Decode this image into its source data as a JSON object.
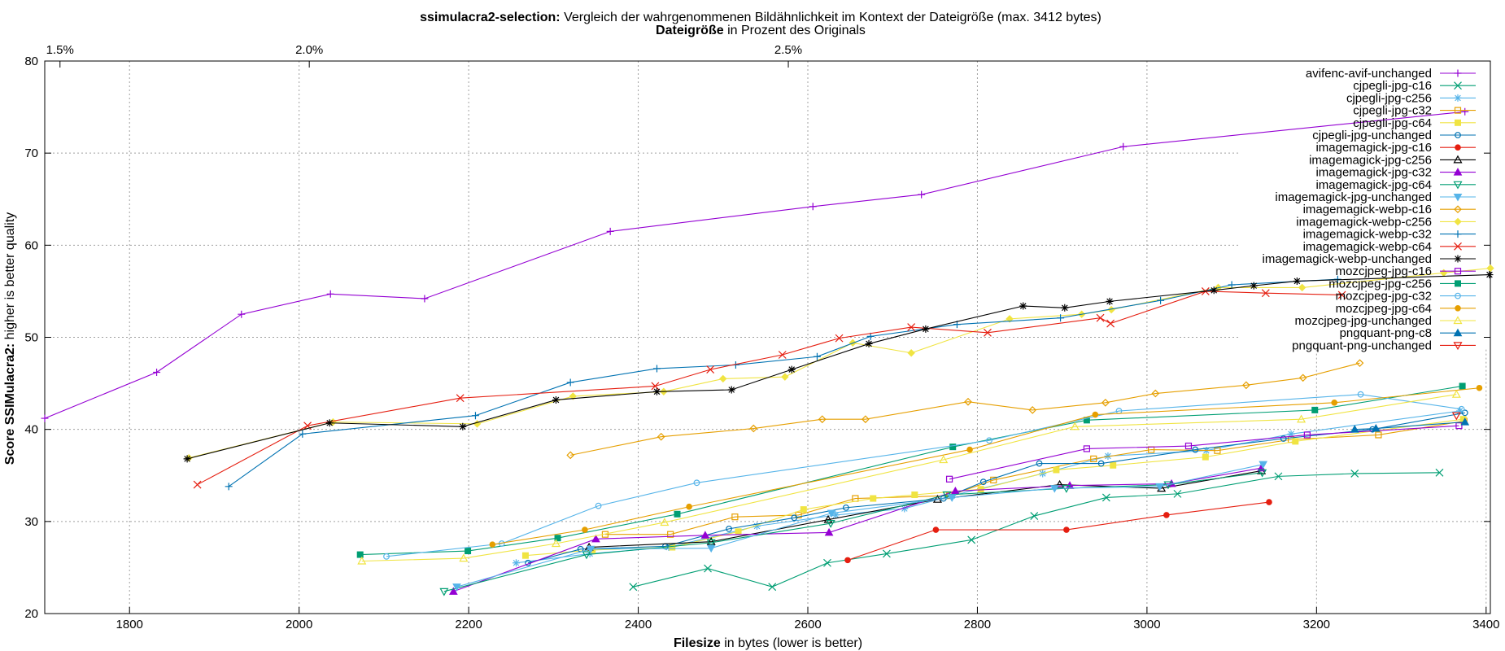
{
  "chart_data": {
    "type": "line",
    "title_bold": "ssimulacra2-selection:",
    "title_rest": " Vergleich der wahrgenommenen Bildähnlichkeit im Kontext der Dateigröße (max. 3412 bytes)",
    "subtitle_bold": "Dateigröße",
    "subtitle_rest": " in Prozent des Originals",
    "xlabel_bold": "Filesize",
    "xlabel_rest": " in bytes (lower is better)",
    "ylabel_bold": "Score SSIMulacra2:",
    "ylabel_rest": " higher is better quality",
    "xlim": [
      1700,
      3405
    ],
    "ylim": [
      20,
      80
    ],
    "xticks": [
      1800,
      2000,
      2200,
      2400,
      2600,
      2800,
      3000,
      3200,
      3400
    ],
    "yticks": [
      20,
      30,
      40,
      50,
      60,
      70,
      80
    ],
    "top_axis_ticks": [
      {
        "label": "1.5%",
        "value": 1718
      },
      {
        "label": "2.0%",
        "value": 2012
      },
      {
        "label": "2.5%",
        "value": 2577
      }
    ],
    "grid": true,
    "legend_position": "top-right",
    "series": [
      {
        "name": "avifenc-avif-unchanged",
        "color": "#9400d3",
        "marker": "plus",
        "points": [
          [
            1700,
            41.2
          ],
          [
            1832,
            46.2
          ],
          [
            1932,
            52.5
          ],
          [
            2037,
            54.7
          ],
          [
            2148,
            54.2
          ],
          [
            2367,
            61.5
          ],
          [
            2606,
            64.2
          ],
          [
            2734,
            65.5
          ],
          [
            2972,
            70.7
          ],
          [
            3375,
            74.5
          ]
        ]
      },
      {
        "name": "cjpegli-jpg-c16",
        "color": "#009e73",
        "marker": "x",
        "points": [
          [
            2394,
            22.9
          ],
          [
            2482,
            24.9
          ],
          [
            2558,
            22.9
          ],
          [
            2623,
            25.5
          ],
          [
            2693,
            26.5
          ],
          [
            2793,
            28.0
          ],
          [
            2867,
            30.6
          ],
          [
            2952,
            32.6
          ],
          [
            3036,
            33.0
          ],
          [
            3155,
            34.9
          ],
          [
            3245,
            35.2
          ],
          [
            3345,
            35.3
          ]
        ]
      },
      {
        "name": "cjpegli-jpg-c256",
        "color": "#56b4e9",
        "marker": "star",
        "points": [
          [
            2256,
            25.5
          ],
          [
            2343,
            26.5
          ],
          [
            2436,
            27.2
          ],
          [
            2540,
            29.5
          ],
          [
            2633,
            30.7
          ],
          [
            2714,
            31.4
          ],
          [
            2770,
            32.8
          ],
          [
            2877,
            35.2
          ],
          [
            2954,
            37.1
          ],
          [
            3070,
            37.7
          ],
          [
            3170,
            39.5
          ],
          [
            3369,
            42.0
          ]
        ]
      },
      {
        "name": "cjpegli-jpg-c32",
        "color": "#e69f00",
        "marker": "square",
        "points": [
          [
            2361,
            28.6
          ],
          [
            2438,
            28.6
          ],
          [
            2514,
            30.5
          ],
          [
            2589,
            30.7
          ],
          [
            2656,
            32.5
          ],
          [
            2767,
            32.8
          ],
          [
            2819,
            34.5
          ],
          [
            2937,
            36.8
          ],
          [
            3005,
            37.8
          ],
          [
            3083,
            37.7
          ],
          [
            3170,
            38.9
          ],
          [
            3273,
            39.4
          ],
          [
            3374,
            40.9
          ]
        ]
      },
      {
        "name": "cjpegli-jpg-c64",
        "color": "#f0e442",
        "marker": "fsquare",
        "points": [
          [
            2267,
            26.3
          ],
          [
            2346,
            26.9
          ],
          [
            2440,
            27.2
          ],
          [
            2518,
            28.9
          ],
          [
            2595,
            31.3
          ],
          [
            2677,
            32.5
          ],
          [
            2726,
            32.9
          ],
          [
            2804,
            33.5
          ],
          [
            2893,
            35.6
          ],
          [
            2960,
            36.1
          ],
          [
            3069,
            37.0
          ],
          [
            3175,
            38.7
          ],
          [
            3373,
            41.1
          ]
        ]
      },
      {
        "name": "cjpegli-jpg-unchanged",
        "color": "#0072b2",
        "marker": "circle",
        "points": [
          [
            2270,
            25.5
          ],
          [
            2332,
            27.0
          ],
          [
            2432,
            27.3
          ],
          [
            2507,
            29.2
          ],
          [
            2584,
            30.4
          ],
          [
            2645,
            31.5
          ],
          [
            2760,
            32.5
          ],
          [
            2807,
            34.3
          ],
          [
            2873,
            36.3
          ],
          [
            2946,
            36.3
          ],
          [
            3057,
            37.8
          ],
          [
            3161,
            39.0
          ],
          [
            3266,
            40.0
          ],
          [
            3375,
            41.8
          ]
        ]
      },
      {
        "name": "imagemagick-jpg-c16",
        "color": "#e51e10",
        "marker": "fcircle",
        "points": [
          [
            2647,
            25.8
          ],
          [
            2751,
            29.1
          ],
          [
            2905,
            29.1
          ],
          [
            3023,
            30.7
          ],
          [
            3144,
            32.1
          ]
        ]
      },
      {
        "name": "imagemagick-jpg-c256",
        "color": "#000000",
        "marker": "triangle",
        "points": [
          [
            2342,
            27.2
          ],
          [
            2486,
            27.8
          ],
          [
            2624,
            30.2
          ],
          [
            2753,
            32.4
          ],
          [
            2897,
            34.0
          ],
          [
            3017,
            33.6
          ],
          [
            3135,
            35.5
          ]
        ]
      },
      {
        "name": "imagemagick-jpg-c32",
        "color": "#9400d3",
        "marker": "ftriangle",
        "points": [
          [
            2182,
            22.4
          ],
          [
            2350,
            28.1
          ],
          [
            2479,
            28.5
          ],
          [
            2625,
            28.8
          ],
          [
            2774,
            33.3
          ],
          [
            2909,
            33.9
          ],
          [
            3029,
            34.1
          ],
          [
            3135,
            35.8
          ]
        ]
      },
      {
        "name": "imagemagick-jpg-c64",
        "color": "#009e73",
        "marker": "dtriangle",
        "points": [
          [
            2171,
            22.4
          ],
          [
            2339,
            26.4
          ],
          [
            2486,
            27.7
          ],
          [
            2627,
            29.8
          ],
          [
            2764,
            32.9
          ],
          [
            2905,
            33.6
          ],
          [
            3025,
            34.0
          ],
          [
            3136,
            35.3
          ]
        ]
      },
      {
        "name": "imagemagick-jpg-unchanged",
        "color": "#56b4e9",
        "marker": "fdtriangle",
        "points": [
          [
            2186,
            22.9
          ],
          [
            2344,
            27.0
          ],
          [
            2486,
            27.1
          ],
          [
            2628,
            30.9
          ],
          [
            2770,
            32.6
          ],
          [
            2891,
            33.6
          ],
          [
            3015,
            33.8
          ],
          [
            3137,
            36.2
          ]
        ]
      },
      {
        "name": "imagemagick-webp-c16",
        "color": "#e69f00",
        "marker": "diamond",
        "points": [
          [
            2320,
            37.2
          ],
          [
            2427,
            39.2
          ],
          [
            2536,
            40.1
          ],
          [
            2617,
            41.1
          ],
          [
            2668,
            41.1
          ],
          [
            2789,
            43.0
          ],
          [
            2865,
            42.1
          ],
          [
            2951,
            42.9
          ],
          [
            3010,
            43.9
          ],
          [
            3117,
            44.8
          ],
          [
            3184,
            45.6
          ],
          [
            3251,
            47.2
          ]
        ]
      },
      {
        "name": "imagemagick-webp-c256",
        "color": "#f0e442",
        "marker": "fdiamond",
        "points": [
          [
            1870,
            36.9
          ],
          [
            2040,
            40.8
          ],
          [
            2210,
            40.6
          ],
          [
            2323,
            43.6
          ],
          [
            2430,
            44.1
          ],
          [
            2500,
            45.5
          ],
          [
            2573,
            45.7
          ],
          [
            2653,
            49.4
          ],
          [
            2722,
            48.3
          ],
          [
            2838,
            52.0
          ],
          [
            2923,
            52.5
          ],
          [
            2958,
            53.0
          ],
          [
            3084,
            55.4
          ],
          [
            3183,
            55.4
          ],
          [
            3350,
            57.0
          ],
          [
            3405,
            57.5
          ]
        ]
      },
      {
        "name": "imagemagick-webp-c32",
        "color": "#0072b2",
        "marker": "plus",
        "points": [
          [
            1917,
            33.8
          ],
          [
            2004,
            39.5
          ],
          [
            2208,
            41.5
          ],
          [
            2320,
            45.1
          ],
          [
            2422,
            46.6
          ],
          [
            2515,
            47.0
          ],
          [
            2611,
            47.9
          ],
          [
            2674,
            50.1
          ],
          [
            2776,
            51.4
          ],
          [
            2898,
            52.1
          ],
          [
            3016,
            54.0
          ],
          [
            3100,
            55.7
          ],
          [
            3225,
            56.3
          ]
        ]
      },
      {
        "name": "imagemagick-webp-c64",
        "color": "#e51e10",
        "marker": "x",
        "points": [
          [
            1880,
            34.0
          ],
          [
            2010,
            40.4
          ],
          [
            2190,
            43.4
          ],
          [
            2420,
            44.7
          ],
          [
            2485,
            46.5
          ],
          [
            2570,
            48.1
          ],
          [
            2637,
            49.9
          ],
          [
            2722,
            51.1
          ],
          [
            2812,
            50.5
          ],
          [
            2945,
            52.1
          ],
          [
            2957,
            51.5
          ],
          [
            3069,
            55.0
          ],
          [
            3140,
            54.8
          ],
          [
            3230,
            54.6
          ]
        ]
      },
      {
        "name": "imagemagick-webp-unchanged",
        "color": "#000000",
        "marker": "star",
        "points": [
          [
            1868,
            36.8
          ],
          [
            2036,
            40.7
          ],
          [
            2193,
            40.3
          ],
          [
            2303,
            43.2
          ],
          [
            2422,
            44.1
          ],
          [
            2510,
            44.3
          ],
          [
            2581,
            46.5
          ],
          [
            2672,
            49.3
          ],
          [
            2739,
            50.9
          ],
          [
            2854,
            53.4
          ],
          [
            2903,
            53.2
          ],
          [
            2956,
            53.9
          ],
          [
            3079,
            55.1
          ],
          [
            3126,
            55.6
          ],
          [
            3177,
            56.1
          ],
          [
            3404,
            56.8
          ]
        ]
      },
      {
        "name": "mozcjpeg-jpg-c16",
        "color": "#9400d3",
        "marker": "square",
        "points": [
          [
            2767,
            34.6
          ],
          [
            2929,
            37.9
          ],
          [
            3049,
            38.2
          ],
          [
            3189,
            39.4
          ],
          [
            3368,
            40.4
          ]
        ]
      },
      {
        "name": "mozcjpeg-jpg-c256",
        "color": "#009e73",
        "marker": "fsquare",
        "points": [
          [
            2072,
            26.4
          ],
          [
            2199,
            26.8
          ],
          [
            2305,
            28.2
          ],
          [
            2446,
            30.8
          ],
          [
            2771,
            38.1
          ],
          [
            2929,
            41.0
          ],
          [
            3198,
            42.1
          ],
          [
            3372,
            44.7
          ]
        ]
      },
      {
        "name": "mozcjpeg-jpg-c32",
        "color": "#56b4e9",
        "marker": "circle",
        "points": [
          [
            2103,
            26.2
          ],
          [
            2239,
            27.6
          ],
          [
            2353,
            31.7
          ],
          [
            2469,
            34.2
          ],
          [
            2814,
            38.8
          ],
          [
            2967,
            42.0
          ],
          [
            3252,
            43.8
          ],
          [
            3371,
            42.2
          ]
        ]
      },
      {
        "name": "mozcjpeg-jpg-c64",
        "color": "#e69f00",
        "marker": "fcircle",
        "points": [
          [
            2228,
            27.5
          ],
          [
            2337,
            29.1
          ],
          [
            2460,
            31.6
          ],
          [
            2791,
            37.8
          ],
          [
            2939,
            41.6
          ],
          [
            3221,
            42.9
          ],
          [
            3392,
            44.5
          ]
        ]
      },
      {
        "name": "mozcjpeg-jpg-unchanged",
        "color": "#f0e442",
        "marker": "triangle",
        "points": [
          [
            2074,
            25.7
          ],
          [
            2194,
            26.0
          ],
          [
            2303,
            27.6
          ],
          [
            2431,
            29.9
          ],
          [
            2760,
            36.7
          ],
          [
            2915,
            40.3
          ],
          [
            3182,
            41.1
          ],
          [
            3365,
            43.8
          ]
        ]
      },
      {
        "name": "pngquant-png-c8",
        "color": "#0072b2",
        "marker": "ftriangle",
        "points": [
          [
            3245,
            40.0
          ],
          [
            3270,
            40.1
          ],
          [
            3375,
            40.8
          ]
        ]
      },
      {
        "name": "pngquant-png-unchanged",
        "color": "#e51e10",
        "marker": "dtriangle",
        "points": [
          [
            3365,
            41.5
          ]
        ]
      }
    ]
  }
}
